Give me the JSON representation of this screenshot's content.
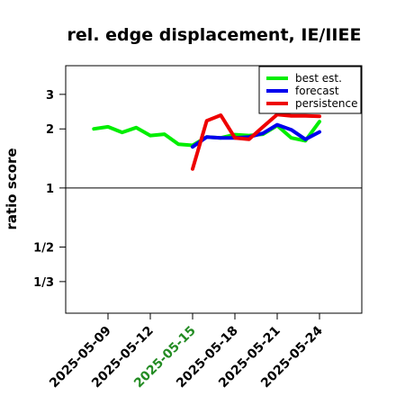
{
  "chart_data": {
    "type": "line",
    "title": "rel. edge displacement, IE/IIEE",
    "xlabel": "",
    "ylabel": "ratio score",
    "y_scale": "log",
    "y_ticks": [
      {
        "value": 0.3333,
        "label": "1/3"
      },
      {
        "value": 0.5,
        "label": "1/2"
      },
      {
        "value": 1,
        "label": "1"
      },
      {
        "value": 2,
        "label": "2"
      },
      {
        "value": 3,
        "label": "3"
      }
    ],
    "ylim": [
      0.23,
      4.2
    ],
    "xlim": [
      "2025-05-06",
      "2025-05-27"
    ],
    "x_ticks": [
      {
        "date": "2025-05-09",
        "label": "2025-05-09",
        "color": "#000000"
      },
      {
        "date": "2025-05-12",
        "label": "2025-05-12",
        "color": "#000000"
      },
      {
        "date": "2025-05-15",
        "label": "2025-05-15",
        "color": "#228B22"
      },
      {
        "date": "2025-05-18",
        "label": "2025-05-18",
        "color": "#000000"
      },
      {
        "date": "2025-05-21",
        "label": "2025-05-21",
        "color": "#000000"
      },
      {
        "date": "2025-05-24",
        "label": "2025-05-24",
        "color": "#000000"
      }
    ],
    "reference_line": 1,
    "legend_position": "top-right",
    "series": [
      {
        "name": "best est.",
        "color": "#00ee00",
        "points": [
          [
            "2025-05-08",
            2.0
          ],
          [
            "2025-05-09",
            2.05
          ],
          [
            "2025-05-10",
            1.92
          ],
          [
            "2025-05-11",
            2.03
          ],
          [
            "2025-05-12",
            1.85
          ],
          [
            "2025-05-13",
            1.88
          ],
          [
            "2025-05-14",
            1.67
          ],
          [
            "2025-05-15",
            1.65
          ],
          [
            "2025-05-16",
            1.82
          ],
          [
            "2025-05-17",
            1.8
          ],
          [
            "2025-05-18",
            1.87
          ],
          [
            "2025-05-19",
            1.85
          ],
          [
            "2025-05-20",
            1.88
          ],
          [
            "2025-05-21",
            2.08
          ],
          [
            "2025-05-22",
            1.8
          ],
          [
            "2025-05-23",
            1.74
          ],
          [
            "2025-05-24",
            2.18
          ]
        ]
      },
      {
        "name": "forecast",
        "color": "#0000ee",
        "points": [
          [
            "2025-05-15",
            1.62
          ],
          [
            "2025-05-16",
            1.82
          ],
          [
            "2025-05-17",
            1.8
          ],
          [
            "2025-05-18",
            1.8
          ],
          [
            "2025-05-19",
            1.82
          ],
          [
            "2025-05-20",
            1.9
          ],
          [
            "2025-05-21",
            2.1
          ],
          [
            "2025-05-22",
            1.98
          ],
          [
            "2025-05-23",
            1.77
          ],
          [
            "2025-05-24",
            1.93
          ]
        ]
      },
      {
        "name": "persistence",
        "color": "#ee0000",
        "points": [
          [
            "2025-05-15",
            1.25
          ],
          [
            "2025-05-16",
            2.2
          ],
          [
            "2025-05-17",
            2.35
          ],
          [
            "2025-05-18",
            1.8
          ],
          [
            "2025-05-19",
            1.77
          ],
          [
            "2025-05-20",
            2.05
          ],
          [
            "2025-05-21",
            2.37
          ],
          [
            "2025-05-22",
            2.33
          ],
          [
            "2025-05-23",
            2.33
          ],
          [
            "2025-05-24",
            2.32
          ]
        ]
      }
    ]
  }
}
